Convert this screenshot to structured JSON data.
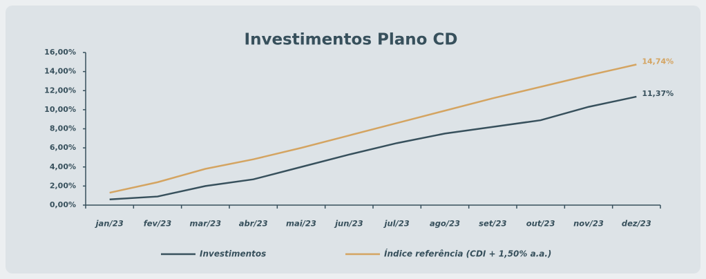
{
  "chart_data": {
    "type": "line",
    "title": "Investimentos Plano CD",
    "categories": [
      "jan/23",
      "fev/23",
      "mar/23",
      "abr/23",
      "mai/23",
      "jun/23",
      "jul/23",
      "ago/23",
      "set/23",
      "out/23",
      "nov/23",
      "dez/23"
    ],
    "series": [
      {
        "name": "Investimentos",
        "color": "#37505c",
        "values": [
          0.6,
          0.9,
          2.0,
          2.7,
          4.0,
          5.3,
          6.5,
          7.5,
          8.2,
          8.9,
          10.3,
          11.37
        ],
        "value_labels": [
          null,
          null,
          null,
          null,
          null,
          null,
          null,
          null,
          null,
          null,
          null,
          "11,37%"
        ]
      },
      {
        "name": "Índice referência (CDI + 1,50% a.a.)",
        "color": "#d4a461",
        "values": [
          1.3,
          2.4,
          3.8,
          4.8,
          6.0,
          7.3,
          8.6,
          9.9,
          11.2,
          12.4,
          13.6,
          14.74
        ],
        "value_labels": [
          null,
          null,
          null,
          null,
          null,
          null,
          null,
          null,
          null,
          null,
          null,
          "14,74%"
        ]
      }
    ],
    "ylim": [
      0,
      16
    ],
    "yticks": [
      {
        "value": 0,
        "label": "0,00%"
      },
      {
        "value": 2,
        "label": "2,00%"
      },
      {
        "value": 4,
        "label": "4,00%"
      },
      {
        "value": 6,
        "label": "6,00%"
      },
      {
        "value": 8,
        "label": "8,00%"
      },
      {
        "value": 10,
        "label": "10,00%"
      },
      {
        "value": 12,
        "label": "12,00%"
      },
      {
        "value": 14,
        "label": "14,00%"
      },
      {
        "value": 16,
        "label": "16,00%"
      }
    ],
    "grid": false,
    "legend": "bottom"
  }
}
